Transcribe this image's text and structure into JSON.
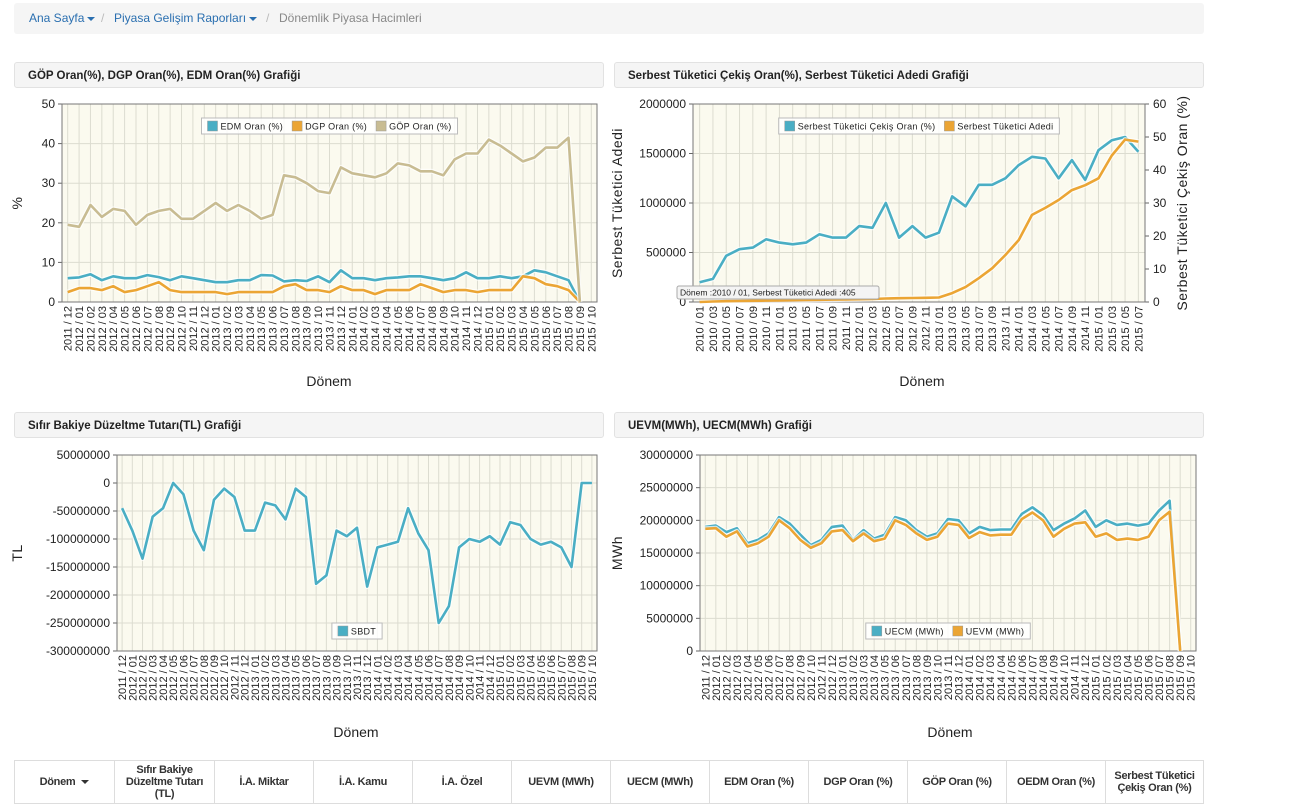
{
  "breadcrumb": [
    "Ana Sayfa",
    "Piyasa Gelişim Raporları",
    "Dönemlik Piyasa Hacimleri"
  ],
  "chart_data": [
    {
      "type": "line",
      "title": "GÖP Oran(%), DGP Oran(%), EDM Oran(%) Grafiği",
      "xlabel": "Dönem",
      "ylabel": "%",
      "legend": "top",
      "grid": true,
      "categories": [
        "2011 / 12",
        "2012 / 01",
        "2012 / 02",
        "2012 / 03",
        "2012 / 04",
        "2012 / 05",
        "2012 / 06",
        "2012 / 07",
        "2012 / 08",
        "2012 / 09",
        "2012 / 10",
        "2012 / 11",
        "2012 / 12",
        "2013 / 01",
        "2013 / 02",
        "2013 / 03",
        "2013 / 04",
        "2013 / 05",
        "2013 / 06",
        "2013 / 07",
        "2013 / 08",
        "2013 / 09",
        "2013 / 10",
        "2013 / 11",
        "2013 / 12",
        "2014 / 01",
        "2014 / 02",
        "2014 / 03",
        "2014 / 04",
        "2014 / 05",
        "2014 / 06",
        "2014 / 07",
        "2014 / 08",
        "2014 / 09",
        "2014 / 10",
        "2014 / 11",
        "2014 / 12",
        "2015 / 01",
        "2015 / 02",
        "2015 / 03",
        "2015 / 04",
        "2015 / 05",
        "2015 / 06",
        "2015 / 07",
        "2015 / 08",
        "2015 / 09",
        "2015 / 10"
      ],
      "ylim": [
        0,
        50
      ],
      "yticks": [
        0,
        10,
        20,
        30,
        40,
        50
      ],
      "series": [
        {
          "name": "EDM Oran (%)",
          "color": "#4aaec4",
          "values": [
            6,
            6.2,
            7,
            5.5,
            6.5,
            6,
            6,
            6.8,
            6.3,
            5.5,
            6.5,
            6,
            5.5,
            5,
            5,
            5.5,
            5.5,
            6.8,
            6.7,
            5.2,
            5.5,
            5.3,
            6.5,
            5,
            8,
            6,
            6,
            5.5,
            6,
            6.2,
            6.5,
            6.5,
            6,
            5.5,
            6,
            7.5,
            6,
            6,
            6.5,
            6,
            6.5,
            8,
            7.5,
            6.5,
            5.5,
            0,
            null
          ]
        },
        {
          "name": "DGP Oran (%)",
          "color": "#eba534",
          "values": [
            2.5,
            3.5,
            3.5,
            3,
            4,
            2.5,
            3,
            4,
            5,
            3,
            2.5,
            2.5,
            2.5,
            2.5,
            2,
            2.5,
            2.5,
            2.5,
            2.5,
            4,
            4.5,
            3,
            3,
            2.5,
            4,
            3,
            3,
            2,
            3,
            3,
            3,
            4.5,
            3.5,
            2.5,
            3,
            3,
            2.5,
            3,
            3,
            3,
            6.5,
            6,
            4.5,
            4,
            3,
            0,
            null
          ]
        },
        {
          "name": "GÖP Oran (%)",
          "color": "#c8bc92",
          "values": [
            19.5,
            19,
            24.5,
            21.5,
            23.5,
            23,
            19.5,
            22,
            23,
            23.5,
            21,
            21,
            23,
            25,
            23,
            24.5,
            23,
            21,
            22,
            32,
            31.5,
            30,
            28,
            27.5,
            34,
            32.5,
            32,
            31.5,
            32.5,
            35,
            34.5,
            33,
            33,
            32,
            36,
            37.5,
            37.5,
            41,
            39.5,
            37.5,
            35.5,
            36.5,
            39,
            39,
            41.5,
            0,
            null
          ]
        }
      ]
    },
    {
      "type": "line",
      "title": "Serbest Tüketici Çekiş Oran(%), Serbest Tüketici Adedi Grafiği",
      "xlabel": "Dönem",
      "ylabel": "Serbest Tüketici Adedi",
      "y2label": "Serbest Tüketici Çekiş Oran (%)",
      "legend": "top",
      "grid": true,
      "annotation": "Dönem :2010 / 01, Serbest Tüketici Adedi :405",
      "categories": [
        "2010 / 01",
        "2010 / 03",
        "2010 / 05",
        "2010 / 07",
        "2010 / 09",
        "2010 / 11",
        "2011 / 01",
        "2011 / 03",
        "2011 / 05",
        "2011 / 07",
        "2011 / 09",
        "2011 / 11",
        "2012 / 01",
        "2012 / 03",
        "2012 / 05",
        "2012 / 07",
        "2012 / 09",
        "2012 / 11",
        "2013 / 01",
        "2013 / 03",
        "2013 / 05",
        "2013 / 07",
        "2013 / 09",
        "2013 / 11",
        "2014 / 01",
        "2014 / 03",
        "2014 / 05",
        "2014 / 07",
        "2014 / 09",
        "2014 / 11",
        "2015 / 01",
        "2015 / 03",
        "2015 / 05",
        "2015 / 07"
      ],
      "ylim": [
        0,
        2000000
      ],
      "yticks": [
        0,
        500000,
        1000000,
        1500000,
        2000000
      ],
      "y2lim": [
        0,
        60
      ],
      "y2ticks": [
        0,
        10,
        20,
        30,
        40,
        50,
        60
      ],
      "series": [
        {
          "name": "Serbest Tüketici Çekiş Oran (%)",
          "color": "#4aaec4",
          "axis": "y2",
          "values": [
            6,
            7,
            14,
            16,
            16.5,
            19,
            18,
            17.5,
            18,
            20.5,
            19.5,
            19.5,
            23,
            22.5,
            30,
            19.5,
            23,
            19.5,
            21,
            32,
            29,
            35.5,
            35.5,
            37.5,
            41.5,
            44,
            43.5,
            37.5,
            43,
            37,
            46,
            49,
            50,
            45.5
          ]
        },
        {
          "name": "Serbest Tüketici Adedi",
          "color": "#eba534",
          "values": [
            405,
            5000,
            8000,
            10000,
            12000,
            14000,
            16000,
            18000,
            20000,
            22000,
            24000,
            26000,
            28000,
            30000,
            35000,
            38000,
            40000,
            42000,
            45000,
            90000,
            150000,
            240000,
            340000,
            475000,
            625000,
            880000,
            950000,
            1030000,
            1130000,
            1180000,
            1250000,
            1480000,
            1640000,
            1620000
          ]
        }
      ]
    },
    {
      "type": "line",
      "title": "Sıfır Bakiye Düzeltme Tutarı(TL) Grafiği",
      "xlabel": "Dönem",
      "ylabel": "TL",
      "legend": "bottom",
      "grid": true,
      "categories": [
        "2011 / 12",
        "2012 / 01",
        "2012 / 02",
        "2012 / 03",
        "2012 / 04",
        "2012 / 05",
        "2012 / 06",
        "2012 / 07",
        "2012 / 08",
        "2012 / 09",
        "2012 / 10",
        "2012 / 11",
        "2012 / 12",
        "2013 / 01",
        "2013 / 02",
        "2013 / 03",
        "2013 / 04",
        "2013 / 05",
        "2013 / 06",
        "2013 / 07",
        "2013 / 08",
        "2013 / 09",
        "2013 / 10",
        "2013 / 11",
        "2013 / 12",
        "2014 / 01",
        "2014 / 02",
        "2014 / 03",
        "2014 / 04",
        "2014 / 05",
        "2014 / 06",
        "2014 / 07",
        "2014 / 08",
        "2014 / 09",
        "2014 / 10",
        "2014 / 11",
        "2014 / 12",
        "2015 / 01",
        "2015 / 02",
        "2015 / 03",
        "2015 / 04",
        "2015 / 05",
        "2015 / 06",
        "2015 / 07",
        "2015 / 08",
        "2015 / 09",
        "2015 / 10"
      ],
      "ylim": [
        -300000000,
        50000000
      ],
      "yticks": [
        -300000000,
        -250000000,
        -200000000,
        -150000000,
        -100000000,
        -50000000,
        0,
        50000000
      ],
      "series": [
        {
          "name": "SBDT",
          "color": "#4aaec4",
          "values": [
            -45000000,
            -85000000,
            -135000000,
            -60000000,
            -45000000,
            0,
            -20000000,
            -85000000,
            -120000000,
            -30000000,
            -10000000,
            -25000000,
            -85000000,
            -85000000,
            -35000000,
            -40000000,
            -65000000,
            -10000000,
            -25000000,
            -180000000,
            -165000000,
            -85000000,
            -95000000,
            -80000000,
            -185000000,
            -115000000,
            -110000000,
            -105000000,
            -45000000,
            -90000000,
            -120000000,
            -250000000,
            -220000000,
            -115000000,
            -100000000,
            -105000000,
            -95000000,
            -110000000,
            -70000000,
            -75000000,
            -100000000,
            -110000000,
            -105000000,
            -115000000,
            -150000000,
            0,
            0
          ]
        }
      ]
    },
    {
      "type": "line",
      "title": "UEVM(MWh), UECM(MWh) Grafiği",
      "xlabel": "Dönem",
      "ylabel": "MWh",
      "legend": "bottom",
      "grid": true,
      "categories": [
        "2011 / 12",
        "2012 / 01",
        "2012 / 02",
        "2012 / 03",
        "2012 / 04",
        "2012 / 05",
        "2012 / 06",
        "2012 / 07",
        "2012 / 08",
        "2012 / 09",
        "2012 / 10",
        "2012 / 11",
        "2012 / 12",
        "2013 / 01",
        "2013 / 02",
        "2013 / 03",
        "2013 / 04",
        "2013 / 05",
        "2013 / 06",
        "2013 / 07",
        "2013 / 08",
        "2013 / 09",
        "2013 / 10",
        "2013 / 11",
        "2013 / 12",
        "2014 / 01",
        "2014 / 02",
        "2014 / 03",
        "2014 / 04",
        "2014 / 05",
        "2014 / 06",
        "2014 / 07",
        "2014 / 08",
        "2014 / 09",
        "2014 / 10",
        "2014 / 11",
        "2014 / 12",
        "2015 / 01",
        "2015 / 02",
        "2015 / 03",
        "2015 / 04",
        "2015 / 05",
        "2015 / 06",
        "2015 / 07",
        "2015 / 08",
        "2015 / 09",
        "2015 / 10"
      ],
      "ylim": [
        0,
        30000000
      ],
      "yticks": [
        0,
        5000000,
        10000000,
        15000000,
        20000000,
        25000000,
        30000000
      ],
      "series": [
        {
          "name": "UECM (MWh)",
          "color": "#4aaec4",
          "values": [
            19000000,
            19200000,
            18200000,
            18800000,
            16500000,
            17000000,
            18000000,
            20500000,
            19500000,
            17800000,
            16200000,
            17000000,
            19000000,
            19200000,
            17000000,
            18500000,
            17200000,
            17800000,
            20500000,
            20000000,
            18500000,
            17500000,
            18000000,
            20200000,
            20000000,
            18000000,
            19000000,
            18500000,
            18600000,
            18600000,
            21000000,
            22000000,
            20800000,
            18500000,
            19500000,
            20300000,
            21500000,
            19000000,
            20000000,
            19300000,
            19500000,
            19200000,
            19500000,
            21500000,
            23000000,
            0,
            null
          ]
        },
        {
          "name": "UEVM (MWh)",
          "color": "#eba534",
          "values": [
            18700000,
            18800000,
            17500000,
            18300000,
            16000000,
            16500000,
            17500000,
            20000000,
            18800000,
            17000000,
            15800000,
            16500000,
            18300000,
            18500000,
            16800000,
            18000000,
            16800000,
            17200000,
            20000000,
            19300000,
            18000000,
            17000000,
            17500000,
            19500000,
            19300000,
            17300000,
            18200000,
            17700000,
            17800000,
            17800000,
            20200000,
            21200000,
            20000000,
            17500000,
            18700000,
            19500000,
            19700000,
            17500000,
            18000000,
            17000000,
            17200000,
            17000000,
            17500000,
            20000000,
            21300000,
            0,
            null
          ]
        }
      ]
    }
  ],
  "table": {
    "headers": [
      "Dönem",
      "Sıfır Bakiye Düzeltme Tutarı (TL)",
      "İ.A. Miktar",
      "İ.A. Kamu",
      "İ.A. Özel",
      "UEVM (MWh)",
      "UECM (MWh)",
      "EDM Oran (%)",
      "DGP Oran (%)",
      "GÖP Oran (%)",
      "OEDM Oran (%)",
      "Serbest Tüketici Çekiş Oran (%)"
    ]
  }
}
